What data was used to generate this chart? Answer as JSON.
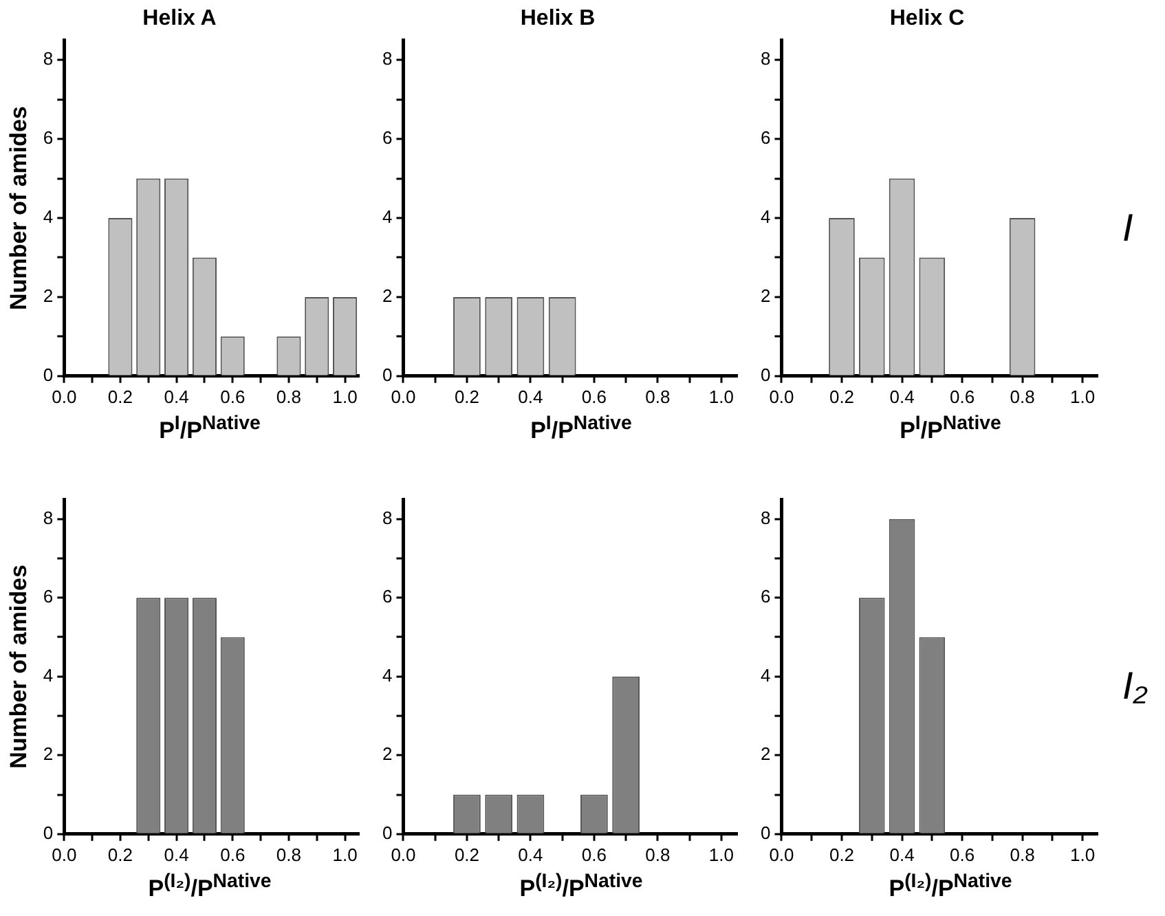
{
  "chart_data": [
    {
      "type": "histogram",
      "title": "Helix A",
      "xlabel": "P$^{I}$/P$^{Native}$",
      "ylabel": "Number of amides",
      "bins": [
        0.15,
        0.25,
        0.35,
        0.45,
        0.55,
        0.65,
        0.75,
        0.85,
        0.95,
        1.05
      ],
      "values": [
        4,
        5,
        5,
        3,
        1,
        0,
        1,
        2,
        2
      ],
      "color": "#c0c0c0",
      "xlim": [
        0,
        1.05
      ],
      "xticks": [
        {
          "value": 0,
          "label": "0.0"
        },
        {
          "value": 0.1,
          "label": null
        },
        0.2,
        {
          "value": 0.3,
          "label": null
        },
        0.4,
        {
          "value": 0.5,
          "label": null
        },
        0.6,
        {
          "value": 0.7,
          "label": null
        },
        0.8,
        {
          "value": 0.9,
          "label": null
        },
        {
          "value": 1,
          "label": "1.0"
        }
      ],
      "ylim": [
        0,
        8.5
      ],
      "yticks": [
        0,
        {
          "value": 1,
          "label": null
        },
        2,
        {
          "value": 3,
          "label": null
        },
        4,
        {
          "value": 5,
          "label": null
        },
        6,
        {
          "value": 7,
          "label": null
        },
        8
      ]
    },
    {
      "type": "histogram",
      "title": "Helix B",
      "xlabel": "P$^{I}$/P$^{Native}$",
      "bins": [
        0.15,
        0.25,
        0.35,
        0.45,
        0.55,
        0.65,
        0.75,
        0.85,
        0.95,
        1.05
      ],
      "values": [
        2,
        2,
        2,
        2,
        0,
        0,
        0,
        0,
        0
      ],
      "color": "#c0c0c0",
      "xlim": [
        0,
        1.05
      ],
      "xticks": [
        {
          "value": 0,
          "label": "0.0"
        },
        {
          "value": 0.1,
          "label": null
        },
        0.2,
        {
          "value": 0.3,
          "label": null
        },
        0.4,
        {
          "value": 0.5,
          "label": null
        },
        0.6,
        {
          "value": 0.7,
          "label": null
        },
        0.8,
        {
          "value": 0.9,
          "label": null
        },
        {
          "value": 1,
          "label": "1.0"
        }
      ],
      "ylim": [
        0,
        8.5
      ],
      "yticks": [
        0,
        {
          "value": 1,
          "label": null
        },
        2,
        {
          "value": 3,
          "label": null
        },
        4,
        {
          "value": 5,
          "label": null
        },
        6,
        {
          "value": 7,
          "label": null
        },
        8
      ]
    },
    {
      "type": "histogram",
      "title": "Helix C",
      "xlabel": "P$^{I}$/P$^{Native}$",
      "annotations": [
        "I"
      ],
      "bins": [
        0.15,
        0.25,
        0.35,
        0.45,
        0.55,
        0.65,
        0.75,
        0.85,
        0.95,
        1.05
      ],
      "values": [
        4,
        3,
        5,
        3,
        0,
        0,
        4,
        0,
        0
      ],
      "color": "#c0c0c0",
      "xlim": [
        0,
        1.05
      ],
      "xticks": [
        {
          "value": 0,
          "label": "0.0"
        },
        {
          "value": 0.1,
          "label": null
        },
        0.2,
        {
          "value": 0.3,
          "label": null
        },
        0.4,
        {
          "value": 0.5,
          "label": null
        },
        0.6,
        {
          "value": 0.7,
          "label": null
        },
        0.8,
        {
          "value": 0.9,
          "label": null
        },
        {
          "value": 1,
          "label": "1.0"
        }
      ],
      "ylim": [
        0,
        8.5
      ],
      "yticks": [
        0,
        {
          "value": 1,
          "label": null
        },
        2,
        {
          "value": 3,
          "label": null
        },
        4,
        {
          "value": 5,
          "label": null
        },
        6,
        {
          "value": 7,
          "label": null
        },
        8
      ]
    },
    {
      "type": "histogram",
      "xlabel": "P$^{(I₂)}$/P$^{Native}$",
      "ylabel": "Number of amides",
      "bins": [
        0.15,
        0.25,
        0.35,
        0.45,
        0.55,
        0.65,
        0.75,
        0.85,
        0.95,
        1.05
      ],
      "values": [
        0,
        6,
        6,
        6,
        5,
        0,
        0,
        0,
        0
      ],
      "color": "#808080",
      "xlim": [
        0,
        1.05
      ],
      "xticks": [
        {
          "value": 0,
          "label": "0.0"
        },
        {
          "value": 0.1,
          "label": null
        },
        0.2,
        {
          "value": 0.3,
          "label": null
        },
        0.4,
        {
          "value": 0.5,
          "label": null
        },
        0.6,
        {
          "value": 0.7,
          "label": null
        },
        0.8,
        {
          "value": 0.9,
          "label": null
        },
        {
          "value": 1,
          "label": "1.0"
        }
      ],
      "ylim": [
        0,
        8.5
      ],
      "yticks": [
        0,
        {
          "value": 1,
          "label": null
        },
        2,
        {
          "value": 3,
          "label": null
        },
        4,
        {
          "value": 5,
          "label": null
        },
        6,
        {
          "value": 7,
          "label": null
        },
        8
      ]
    },
    {
      "type": "histogram",
      "xlabel": "P$^{(I₂)}$/P$^{Native}$",
      "bins": [
        0.15,
        0.25,
        0.35,
        0.45,
        0.55,
        0.65,
        0.75,
        0.85,
        0.95,
        1.05
      ],
      "values": [
        1,
        1,
        1,
        0,
        1,
        4,
        0,
        0,
        0
      ],
      "color": "#808080",
      "xlim": [
        0,
        1.05
      ],
      "xticks": [
        {
          "value": 0,
          "label": "0.0"
        },
        {
          "value": 0.1,
          "label": null
        },
        0.2,
        {
          "value": 0.3,
          "label": null
        },
        0.4,
        {
          "value": 0.5,
          "label": null
        },
        0.6,
        {
          "value": 0.7,
          "label": null
        },
        0.8,
        {
          "value": 0.9,
          "label": null
        },
        {
          "value": 1,
          "label": "1.0"
        }
      ],
      "ylim": [
        0,
        8.5
      ],
      "yticks": [
        0,
        {
          "value": 1,
          "label": null
        },
        2,
        {
          "value": 3,
          "label": null
        },
        4,
        {
          "value": 5,
          "label": null
        },
        6,
        {
          "value": 7,
          "label": null
        },
        8
      ]
    },
    {
      "type": "histogram",
      "xlabel": "P$^{(I₂)}$/P$^{Native}$",
      "annotations": [
        "I₂"
      ],
      "bins": [
        0.15,
        0.25,
        0.35,
        0.45,
        0.55,
        0.65,
        0.75,
        0.85,
        0.95,
        1.05
      ],
      "values": [
        0,
        6,
        8,
        5,
        0,
        0,
        0,
        0,
        0
      ],
      "color": "#808080",
      "xlim": [
        0,
        1.05
      ],
      "xticks": [
        {
          "value": 0,
          "label": "0.0"
        },
        {
          "value": 0.1,
          "label": null
        },
        0.2,
        {
          "value": 0.3,
          "label": null
        },
        0.4,
        {
          "value": 0.5,
          "label": null
        },
        0.6,
        {
          "value": 0.7,
          "label": null
        },
        0.8,
        {
          "value": 0.9,
          "label": null
        },
        {
          "value": 1,
          "label": "1.0"
        }
      ],
      "ylim": [
        0,
        8.5
      ],
      "yticks": [
        0,
        {
          "value": 1,
          "label": null
        },
        2,
        {
          "value": 3,
          "label": null
        },
        4,
        {
          "value": 5,
          "label": null
        },
        6,
        {
          "value": 7,
          "label": null
        },
        8
      ]
    }
  ]
}
